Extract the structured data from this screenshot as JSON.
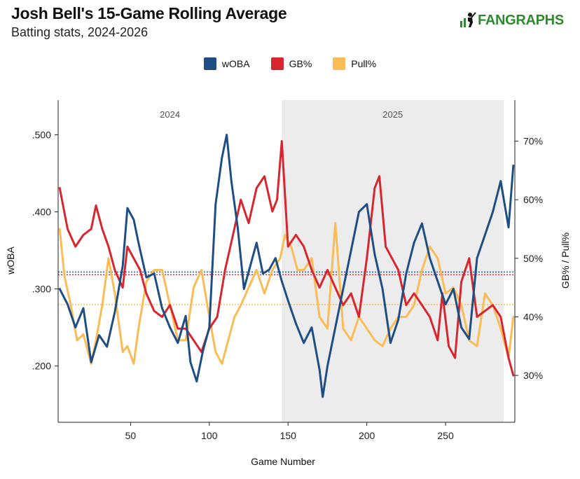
{
  "header": {
    "title": "Josh Bell's 15-Game Rolling Average",
    "subtitle": "Batting stats, 2024-2026",
    "logo_text": "FANGRAPHS"
  },
  "colors": {
    "woba": "#1f4e85",
    "gb": "#d6262f",
    "pull": "#f9bc57",
    "shade": "#ececec",
    "logo": "#2f8a2f"
  },
  "chart_data": {
    "type": "line",
    "xlabel": "Game Number",
    "ylabel_left": "wOBA",
    "ylabel_right": "GB% / Pull%",
    "xlim": [
      4,
      294
    ],
    "ylim_left": [
      0.127,
      0.545
    ],
    "ylim_right": [
      22,
      77
    ],
    "x_ticks": [
      50,
      100,
      150,
      200,
      250
    ],
    "y_ticks_left": [
      ".200",
      ".300",
      ".400",
      ".500"
    ],
    "y_tick_values_left": [
      0.2,
      0.3,
      0.4,
      0.5
    ],
    "y_ticks_right": [
      "30%",
      "40%",
      "50%",
      "60%",
      "70%"
    ],
    "y_tick_values_right": [
      30,
      40,
      50,
      60,
      70
    ],
    "seasons": [
      {
        "label": "2024",
        "start": 4,
        "end": 146,
        "shaded": false
      },
      {
        "label": "2025",
        "start": 146,
        "end": 287,
        "shaded": true
      }
    ],
    "legend_position": "top-center",
    "grid": false,
    "reference_lines": [
      {
        "series": "wOBA",
        "value": 0.322,
        "axis": "left"
      },
      {
        "series": "GB%",
        "value": 47.2,
        "axis": "right"
      },
      {
        "series": "Pull%",
        "value": 42.1,
        "axis": "right"
      }
    ],
    "series": [
      {
        "name": "wOBA",
        "axis": "left",
        "x": [
          5,
          10,
          15,
          20,
          25,
          30,
          35,
          40,
          45,
          48,
          52,
          55,
          60,
          65,
          70,
          75,
          80,
          85,
          88,
          92,
          96,
          100,
          104,
          108,
          111,
          114,
          118,
          122,
          126,
          130,
          134,
          138,
          142,
          146,
          150,
          155,
          160,
          165,
          170,
          172,
          175,
          180,
          185,
          190,
          195,
          200,
          205,
          210,
          215,
          220,
          225,
          230,
          235,
          240,
          245,
          250,
          255,
          260,
          265,
          270,
          275,
          280,
          285,
          290,
          293
        ],
        "y": [
          0.3,
          0.28,
          0.25,
          0.275,
          0.205,
          0.24,
          0.225,
          0.27,
          0.33,
          0.405,
          0.39,
          0.36,
          0.315,
          0.32,
          0.275,
          0.25,
          0.23,
          0.265,
          0.205,
          0.18,
          0.22,
          0.25,
          0.41,
          0.47,
          0.5,
          0.44,
          0.38,
          0.3,
          0.33,
          0.36,
          0.32,
          0.325,
          0.34,
          0.31,
          0.285,
          0.255,
          0.23,
          0.25,
          0.195,
          0.16,
          0.2,
          0.25,
          0.3,
          0.35,
          0.4,
          0.41,
          0.345,
          0.3,
          0.23,
          0.26,
          0.32,
          0.36,
          0.385,
          0.34,
          0.31,
          0.28,
          0.3,
          0.25,
          0.235,
          0.34,
          0.37,
          0.4,
          0.44,
          0.38,
          0.46
        ]
      },
      {
        "name": "GB%",
        "axis": "right",
        "x": [
          5,
          10,
          15,
          20,
          25,
          28,
          32,
          36,
          40,
          45,
          48,
          52,
          56,
          60,
          65,
          70,
          75,
          80,
          85,
          90,
          95,
          100,
          105,
          110,
          115,
          120,
          125,
          130,
          135,
          140,
          143,
          146,
          150,
          155,
          160,
          165,
          170,
          175,
          180,
          185,
          190,
          195,
          200,
          205,
          208,
          212,
          216,
          220,
          225,
          230,
          235,
          240,
          245,
          248,
          252,
          256,
          260,
          265,
          270,
          275,
          280,
          285,
          290,
          293
        ],
        "y": [
          62,
          55,
          52,
          54,
          55,
          59,
          55,
          52,
          48,
          45,
          52,
          50,
          48,
          44,
          41,
          40,
          42,
          38,
          38,
          36,
          34,
          38,
          40,
          48,
          54,
          60,
          56,
          62,
          64,
          58,
          60,
          70,
          52,
          54,
          52,
          48,
          45,
          48,
          45,
          42,
          44,
          40,
          50,
          62,
          64,
          52,
          50,
          48,
          42,
          44,
          42,
          40,
          36,
          44,
          35,
          33,
          46,
          50,
          40,
          41,
          42,
          40,
          33,
          30
        ]
      },
      {
        "name": "Pull%",
        "axis": "right",
        "x": [
          5,
          8,
          12,
          16,
          20,
          25,
          28,
          32,
          36,
          40,
          45,
          48,
          52,
          55,
          60,
          65,
          70,
          75,
          80,
          85,
          90,
          95,
          100,
          104,
          108,
          112,
          116,
          120,
          125,
          130,
          135,
          140,
          145,
          148,
          152,
          156,
          160,
          165,
          170,
          175,
          180,
          185,
          190,
          195,
          200,
          205,
          210,
          215,
          220,
          225,
          230,
          235,
          240,
          245,
          250,
          255,
          260,
          265,
          270,
          275,
          280,
          285,
          290,
          293
        ],
        "y": [
          55,
          47,
          42,
          36,
          37,
          32,
          36,
          42,
          50,
          44,
          34,
          35,
          32,
          38,
          46,
          48,
          48,
          42,
          36,
          36,
          45,
          48,
          40,
          34,
          32,
          36,
          40,
          42,
          45,
          48,
          44,
          48,
          50,
          54,
          52,
          48,
          48,
          50,
          40,
          38,
          56,
          38,
          36,
          40,
          38,
          36,
          35,
          38,
          40,
          40,
          42,
          48,
          52,
          50,
          44,
          45,
          42,
          36,
          35,
          44,
          42,
          38,
          33,
          40
        ]
      }
    ]
  }
}
